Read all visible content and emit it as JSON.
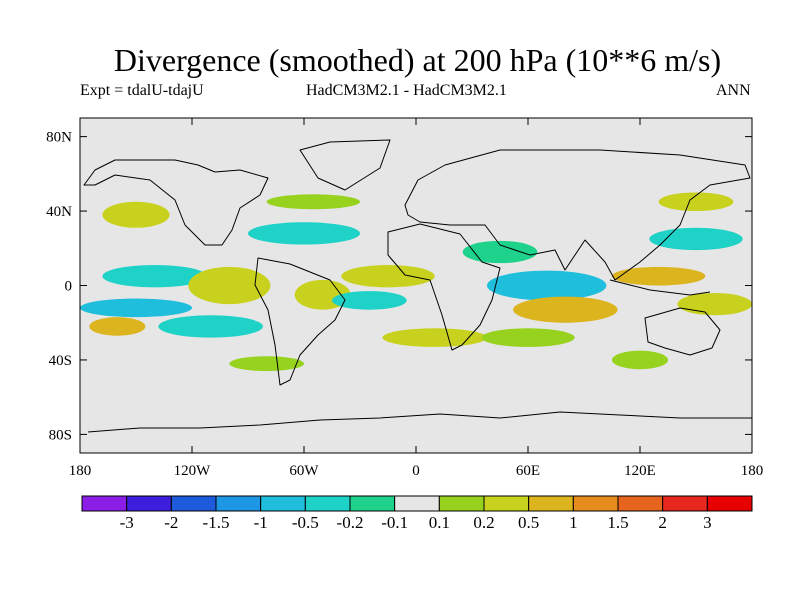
{
  "chart_data": {
    "type": "heatmap",
    "title": "Divergence (smoothed) at 200 hPa (10**6 m/s)",
    "subtitle_left": "Expt = tdalU-tdajU",
    "subtitle_center": "HadCM3M2.1 - HadCM3M2.1",
    "subtitle_right": "ANN",
    "xlim": [
      -180,
      180
    ],
    "ylim": [
      -90,
      90
    ],
    "x_ticks": [
      {
        "value": -180,
        "label": "180"
      },
      {
        "value": -120,
        "label": "120W"
      },
      {
        "value": -60,
        "label": "60W"
      },
      {
        "value": 0,
        "label": "0"
      },
      {
        "value": 60,
        "label": "60E"
      },
      {
        "value": 120,
        "label": "120E"
      },
      {
        "value": 180,
        "label": "180"
      }
    ],
    "y_ticks": [
      {
        "value": 80,
        "label": "80N"
      },
      {
        "value": 40,
        "label": "40N"
      },
      {
        "value": 0,
        "label": "0"
      },
      {
        "value": -40,
        "label": "40S"
      },
      {
        "value": -80,
        "label": "80S"
      }
    ],
    "colorbar": {
      "levels": [
        "-3",
        "-2",
        "-1.5",
        "-1",
        "-0.5",
        "-0.2",
        "-0.1",
        "0.1",
        "0.2",
        "0.5",
        "1",
        "1.5",
        "2",
        "3"
      ],
      "colors": [
        "#8a1ee6",
        "#3c1edc",
        "#1e5adc",
        "#1e96e6",
        "#1ebedc",
        "#1ed2c8",
        "#1ed28c",
        "#e6e6e6",
        "#96d21e",
        "#c8d21e",
        "#dcb41e",
        "#e68c1e",
        "#e6641e",
        "#e6281e",
        "#e60000"
      ]
    },
    "features": [
      {
        "lon": -150,
        "lat": 38,
        "rlon": 18,
        "rlat": 7,
        "level": 9
      },
      {
        "lon": -140,
        "lat": 5,
        "rlon": 28,
        "rlat": 6,
        "level": 5
      },
      {
        "lon": -150,
        "lat": -12,
        "rlon": 30,
        "rlat": 5,
        "level": 4
      },
      {
        "lon": -160,
        "lat": -22,
        "rlon": 15,
        "rlat": 5,
        "level": 10
      },
      {
        "lon": -100,
        "lat": 0,
        "rlon": 22,
        "rlat": 10,
        "level": 9
      },
      {
        "lon": -110,
        "lat": -22,
        "rlon": 28,
        "rlat": 6,
        "level": 5
      },
      {
        "lon": -60,
        "lat": 28,
        "rlon": 30,
        "rlat": 6,
        "level": 5
      },
      {
        "lon": -55,
        "lat": 45,
        "rlon": 25,
        "rlat": 4,
        "level": 8
      },
      {
        "lon": -50,
        "lat": -5,
        "rlon": 15,
        "rlat": 8,
        "level": 9
      },
      {
        "lon": -15,
        "lat": 5,
        "rlon": 25,
        "rlat": 6,
        "level": 9
      },
      {
        "lon": -25,
        "lat": -8,
        "rlon": 20,
        "rlat": 5,
        "level": 5
      },
      {
        "lon": 10,
        "lat": -28,
        "rlon": 28,
        "rlat": 5,
        "level": 9
      },
      {
        "lon": 45,
        "lat": 18,
        "rlon": 20,
        "rlat": 6,
        "level": 6
      },
      {
        "lon": 70,
        "lat": 0,
        "rlon": 32,
        "rlat": 8,
        "level": 4
      },
      {
        "lon": 80,
        "lat": -13,
        "rlon": 28,
        "rlat": 7,
        "level": 10
      },
      {
        "lon": 130,
        "lat": 5,
        "rlon": 25,
        "rlat": 5,
        "level": 10
      },
      {
        "lon": 150,
        "lat": 25,
        "rlon": 25,
        "rlat": 6,
        "level": 5
      },
      {
        "lon": 150,
        "lat": 45,
        "rlon": 20,
        "rlat": 5,
        "level": 9
      },
      {
        "lon": 160,
        "lat": -10,
        "rlon": 20,
        "rlat": 6,
        "level": 9
      },
      {
        "lon": 120,
        "lat": -40,
        "rlon": 15,
        "rlat": 5,
        "level": 8
      },
      {
        "lon": -80,
        "lat": -42,
        "rlon": 20,
        "rlat": 4,
        "level": 8
      },
      {
        "lon": 60,
        "lat": -28,
        "rlon": 25,
        "rlat": 5,
        "level": 8
      }
    ]
  }
}
